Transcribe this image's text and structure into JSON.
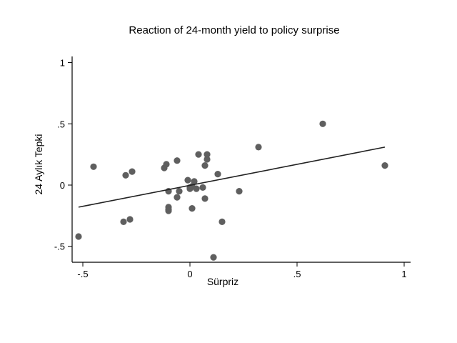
{
  "chart_data": {
    "type": "scatter",
    "title": "Reaction of 24-month yield to policy surprise",
    "xlabel": "Sürpriz",
    "ylabel": "24 Aylık Tepki",
    "xlim": [
      -0.55,
      1.03
    ],
    "ylim": [
      -0.63,
      1.05
    ],
    "x_ticks": [
      -0.5,
      0,
      0.5,
      1
    ],
    "x_tick_labels": [
      "-.5",
      "0",
      ".5",
      "1"
    ],
    "y_ticks": [
      -0.5,
      0,
      0.5,
      1
    ],
    "y_tick_labels": [
      "-.5",
      "0",
      ".5",
      "1"
    ],
    "grid": false,
    "series": [
      {
        "points": [
          [
            -0.52,
            -0.42
          ],
          [
            -0.45,
            0.15
          ],
          [
            -0.31,
            -0.3
          ],
          [
            -0.3,
            0.08
          ],
          [
            -0.28,
            -0.28
          ],
          [
            -0.27,
            0.11
          ],
          [
            -0.12,
            0.14
          ],
          [
            -0.11,
            0.17
          ],
          [
            -0.1,
            -0.18
          ],
          [
            -0.1,
            -0.2
          ],
          [
            -0.1,
            -0.21
          ],
          [
            -0.1,
            -0.05
          ],
          [
            -0.06,
            0.2
          ],
          [
            -0.06,
            -0.1
          ],
          [
            -0.05,
            -0.05
          ],
          [
            -0.01,
            0.04
          ],
          [
            0.0,
            -0.02
          ],
          [
            0.0,
            -0.03
          ],
          [
            0.01,
            -0.01
          ],
          [
            0.01,
            -0.19
          ],
          [
            0.02,
            0.03
          ],
          [
            0.03,
            -0.03
          ],
          [
            0.04,
            0.25
          ],
          [
            0.06,
            -0.02
          ],
          [
            0.07,
            -0.11
          ],
          [
            0.07,
            0.16
          ],
          [
            0.08,
            0.21
          ],
          [
            0.08,
            0.25
          ],
          [
            0.11,
            -0.59
          ],
          [
            0.13,
            0.09
          ],
          [
            0.15,
            -0.3
          ],
          [
            0.23,
            -0.05
          ],
          [
            0.32,
            0.31
          ],
          [
            0.62,
            0.5
          ],
          [
            0.91,
            0.16
          ]
        ]
      }
    ],
    "fit_line": {
      "x": [
        -0.52,
        0.91
      ],
      "y": [
        -0.18,
        0.31
      ]
    }
  }
}
